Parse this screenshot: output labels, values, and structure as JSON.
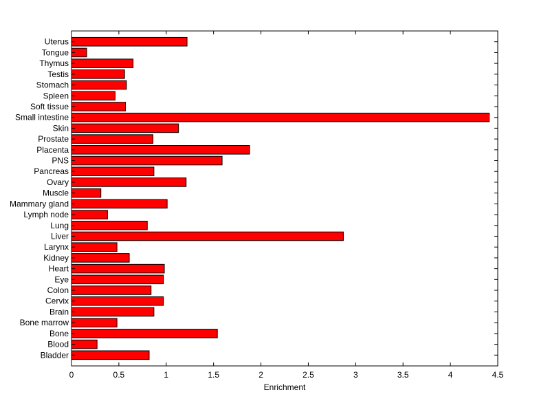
{
  "chart_data": {
    "type": "bar",
    "orientation": "horizontal",
    "categories": [
      "Uterus",
      "Tongue",
      "Thymus",
      "Testis",
      "Stomach",
      "Spleen",
      "Soft tissue",
      "Small intestine",
      "Skin",
      "Prostate",
      "Placenta",
      "PNS",
      "Pancreas",
      "Ovary",
      "Muscle",
      "Mammary gland",
      "Lymph node",
      "Lung",
      "Liver",
      "Larynx",
      "Kidney",
      "Heart",
      "Eye",
      "Colon",
      "Cervix",
      "Brain",
      "Bone marrow",
      "Bone",
      "Blood",
      "Bladder"
    ],
    "values": [
      1.22,
      0.16,
      0.65,
      0.56,
      0.58,
      0.46,
      0.57,
      4.41,
      1.13,
      0.86,
      1.88,
      1.59,
      0.87,
      1.21,
      0.31,
      1.01,
      0.38,
      0.8,
      2.87,
      0.48,
      0.61,
      0.98,
      0.97,
      0.84,
      0.97,
      0.87,
      0.48,
      1.54,
      0.27,
      0.82
    ],
    "xlabel": "Enrichment",
    "ylabel": "",
    "title": "",
    "xlim": [
      0,
      4.5
    ],
    "xticks": [
      "0",
      "0.5",
      "1",
      "1.5",
      "2",
      "2.5",
      "3",
      "3.5",
      "4",
      "4.5"
    ],
    "grid": false,
    "legend": "none",
    "colors": {
      "bar_fill": "#ff0000",
      "bar_edge": "#000000",
      "axis": "#000000",
      "background": "#ffffff"
    }
  }
}
